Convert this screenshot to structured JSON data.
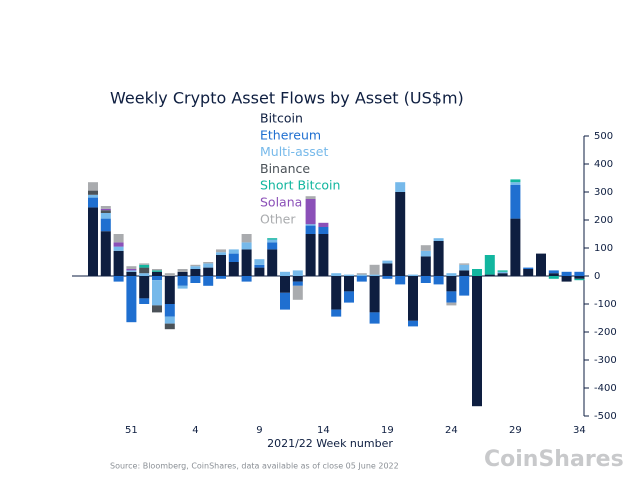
{
  "chart_data": {
    "type": "bar",
    "stacked": true,
    "title": "Weekly Crypto Asset Flows by Asset (US$m)",
    "x_label": "2021/22 Week number",
    "source": "Source: Bloomberg, CoinShares, data available as of close 05 June 2022",
    "watermark": "CoinShares",
    "categories": [
      null,
      null,
      null,
      "51",
      null,
      null,
      null,
      null,
      "4",
      null,
      null,
      null,
      null,
      "9",
      null,
      null,
      null,
      null,
      "14",
      null,
      null,
      null,
      null,
      "19",
      null,
      null,
      null,
      null,
      "24",
      null,
      null,
      null,
      null,
      "29",
      null,
      null,
      null,
      null,
      "34"
    ],
    "ylim": [
      -500,
      500
    ],
    "yticks": [
      -500,
      -400,
      -300,
      -200,
      -100,
      0,
      100,
      200,
      300,
      400,
      500
    ],
    "series": [
      {
        "name": "Bitcoin",
        "color": "#0e1e40",
        "values": [
          245,
          160,
          90,
          15,
          -80,
          15,
          -100,
          15,
          25,
          30,
          75,
          50,
          95,
          30,
          95,
          -60,
          -20,
          150,
          150,
          -120,
          -55,
          0,
          -130,
          45,
          300,
          -160,
          70,
          125,
          -55,
          20,
          -465,
          5,
          10,
          205,
          25,
          80,
          10,
          -20,
          -10
        ]
      },
      {
        "name": "Ethereum",
        "color": "#1f6fd0",
        "values": [
          35,
          45,
          -20,
          -165,
          -20,
          -15,
          -45,
          -35,
          -25,
          -35,
          -10,
          30,
          -20,
          10,
          25,
          -60,
          -15,
          30,
          25,
          -25,
          -40,
          -20,
          -40,
          -10,
          -30,
          -20,
          -25,
          -30,
          -40,
          -70,
          0,
          0,
          0,
          120,
          5,
          0,
          10,
          15,
          15
        ]
      },
      {
        "name": "Multi-asset",
        "color": "#76b9ea",
        "values": [
          10,
          20,
          15,
          5,
          10,
          -90,
          -25,
          -10,
          10,
          15,
          10,
          15,
          25,
          20,
          10,
          15,
          20,
          5,
          0,
          10,
          5,
          5,
          5,
          10,
          35,
          5,
          20,
          10,
          10,
          20,
          0,
          0,
          5,
          10,
          0,
          0,
          0,
          0,
          0
        ]
      },
      {
        "name": "Binance",
        "color": "#4b5258",
        "values": [
          15,
          10,
          0,
          0,
          20,
          -25,
          -20,
          0,
          0,
          0,
          0,
          0,
          0,
          0,
          0,
          0,
          0,
          0,
          0,
          0,
          0,
          0,
          0,
          0,
          0,
          0,
          0,
          0,
          0,
          0,
          0,
          0,
          0,
          0,
          0,
          0,
          0,
          0,
          0
        ]
      },
      {
        "name": "Short Bitcoin",
        "color": "#12b69f",
        "values": [
          0,
          0,
          0,
          0,
          10,
          5,
          0,
          0,
          0,
          0,
          0,
          0,
          0,
          0,
          5,
          0,
          0,
          0,
          0,
          0,
          0,
          0,
          0,
          0,
          0,
          0,
          0,
          0,
          0,
          0,
          25,
          70,
          5,
          10,
          0,
          0,
          -10,
          0,
          -5
        ]
      },
      {
        "name": "Solana",
        "color": "#8b50b8",
        "values": [
          0,
          5,
          15,
          5,
          0,
          0,
          0,
          0,
          0,
          0,
          0,
          0,
          0,
          0,
          0,
          0,
          0,
          90,
          15,
          0,
          0,
          0,
          0,
          0,
          0,
          0,
          0,
          0,
          0,
          0,
          0,
          0,
          0,
          0,
          0,
          0,
          0,
          0,
          0
        ]
      },
      {
        "name": "Other",
        "color": "#a9abae",
        "values": [
          30,
          10,
          30,
          10,
          5,
          5,
          10,
          10,
          5,
          5,
          10,
          0,
          30,
          0,
          0,
          0,
          -50,
          10,
          0,
          0,
          0,
          5,
          35,
          0,
          0,
          0,
          20,
          0,
          -10,
          5,
          0,
          0,
          0,
          0,
          0,
          0,
          0,
          0,
          0
        ]
      }
    ]
  }
}
